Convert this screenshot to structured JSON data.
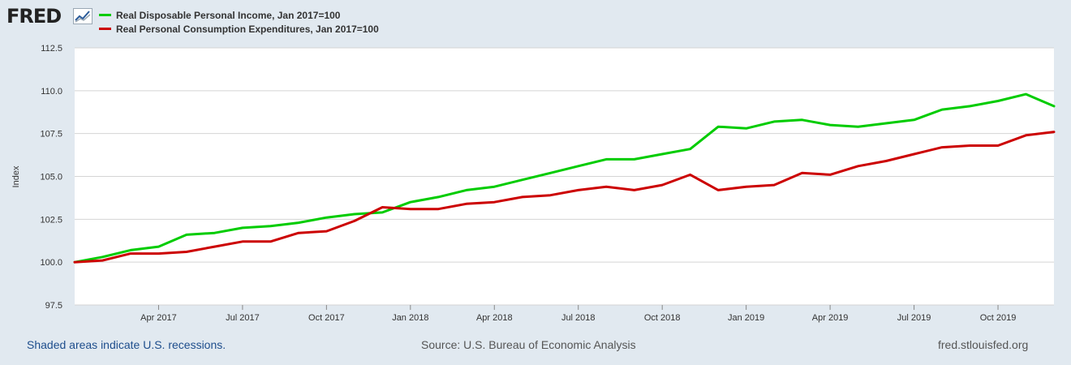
{
  "header": {
    "logo_text": "FRED",
    "logo_icon": "chart-trend-icon"
  },
  "footer": {
    "recession_note": "Shaded areas indicate U.S. recessions.",
    "source": "Source: U.S. Bureau of Economic Analysis",
    "site": "fred.stlouisfed.org"
  },
  "chart_data": {
    "type": "line",
    "title": "",
    "xlabel": "",
    "ylabel": "Index",
    "ylim": [
      97.5,
      112.5
    ],
    "yticks": [
      "97.5",
      "100.0",
      "102.5",
      "105.0",
      "107.5",
      "110.0",
      "112.5"
    ],
    "xlim": [
      "2017-01",
      "2019-12"
    ],
    "xticks": [
      {
        "label": "Apr 2017",
        "date": "2017-04"
      },
      {
        "label": "Jul 2017",
        "date": "2017-07"
      },
      {
        "label": "Oct 2017",
        "date": "2017-10"
      },
      {
        "label": "Jan 2018",
        "date": "2018-01"
      },
      {
        "label": "Apr 2018",
        "date": "2018-04"
      },
      {
        "label": "Jul 2018",
        "date": "2018-07"
      },
      {
        "label": "Oct 2018",
        "date": "2018-10"
      },
      {
        "label": "Jan 2019",
        "date": "2019-01"
      },
      {
        "label": "Apr 2019",
        "date": "2019-04"
      },
      {
        "label": "Jul 2019",
        "date": "2019-07"
      },
      {
        "label": "Oct 2019",
        "date": "2019-10"
      }
    ],
    "grid": true,
    "legend_position": "top-left",
    "x": [
      "2017-01",
      "2017-02",
      "2017-03",
      "2017-04",
      "2017-05",
      "2017-06",
      "2017-07",
      "2017-08",
      "2017-09",
      "2017-10",
      "2017-11",
      "2017-12",
      "2018-01",
      "2018-02",
      "2018-03",
      "2018-04",
      "2018-05",
      "2018-06",
      "2018-07",
      "2018-08",
      "2018-09",
      "2018-10",
      "2018-11",
      "2018-12",
      "2019-01",
      "2019-02",
      "2019-03",
      "2019-04",
      "2019-05",
      "2019-06",
      "2019-07",
      "2019-08",
      "2019-09",
      "2019-10",
      "2019-11",
      "2019-12"
    ],
    "series": [
      {
        "name": "Real Disposable Personal Income, Jan 2017=100",
        "color": "#00cc00",
        "values": [
          100.0,
          100.3,
          100.7,
          100.9,
          101.6,
          101.7,
          102.0,
          102.1,
          102.3,
          102.6,
          102.8,
          102.9,
          103.5,
          103.8,
          104.2,
          104.4,
          104.8,
          105.2,
          105.6,
          106.0,
          106.0,
          106.3,
          106.6,
          107.9,
          107.8,
          108.2,
          108.3,
          108.0,
          107.9,
          108.1,
          108.3,
          108.9,
          109.1,
          109.4,
          109.8,
          109.1
        ]
      },
      {
        "name": "Real Personal Consumption Expenditures, Jan 2017=100",
        "color": "#cc0000",
        "values": [
          100.0,
          100.1,
          100.5,
          100.5,
          100.6,
          100.9,
          101.2,
          101.2,
          101.7,
          101.8,
          102.4,
          103.2,
          103.1,
          103.1,
          103.4,
          103.5,
          103.8,
          103.9,
          104.2,
          104.4,
          104.2,
          104.5,
          105.1,
          104.2,
          104.4,
          104.5,
          105.2,
          105.1,
          105.6,
          105.9,
          106.3,
          106.7,
          106.8,
          106.8,
          107.4,
          107.6
        ]
      }
    ]
  }
}
